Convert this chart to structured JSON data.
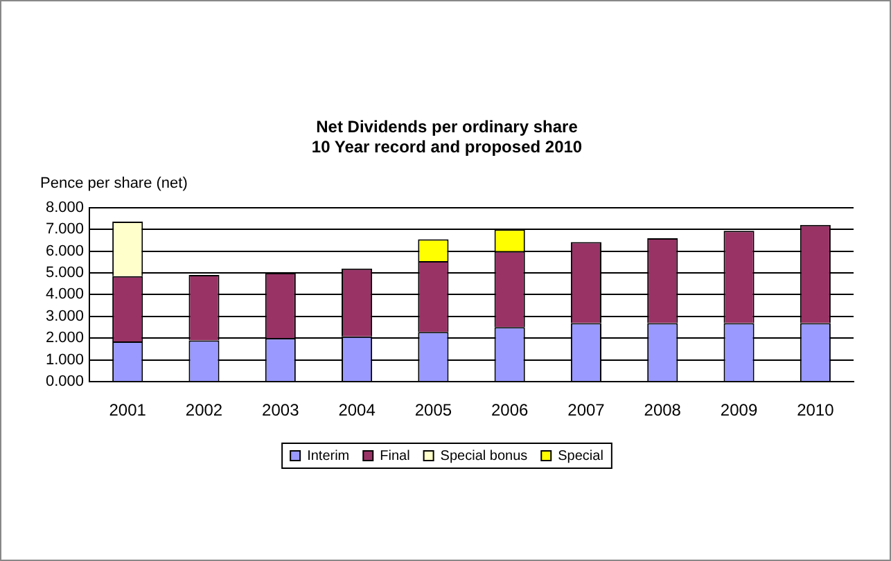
{
  "chart_data": {
    "type": "bar",
    "title": [
      "Net Dividends per ordinary share",
      "10 Year record and proposed 2010"
    ],
    "ylabel": "Pence per share (net)",
    "categories": [
      "2001",
      "2002",
      "2003",
      "2004",
      "2005",
      "2006",
      "2007",
      "2008",
      "2009",
      "2010"
    ],
    "series": [
      {
        "name": "Interim",
        "color": "#9999ff",
        "values": [
          1.85,
          1.9,
          2.0,
          2.08,
          2.29,
          2.51,
          2.69,
          2.69,
          2.69,
          2.69
        ]
      },
      {
        "name": "Final",
        "color": "#993366",
        "values": [
          3.0,
          3.0,
          3.0,
          3.12,
          3.25,
          3.48,
          3.72,
          3.9,
          4.24,
          4.51
        ]
      },
      {
        "name": "Special bonus",
        "color": "#ffffcc",
        "values": [
          2.5,
          null,
          null,
          null,
          null,
          null,
          null,
          null,
          null,
          null
        ]
      },
      {
        "name": "Special",
        "color": "#ffff00",
        "values": [
          null,
          null,
          null,
          null,
          1.0,
          1.0,
          null,
          null,
          null,
          null
        ]
      }
    ],
    "stacked": true,
    "ylim": [
      0,
      8
    ],
    "yticks": [
      {
        "value": 0,
        "label": "0.000"
      },
      {
        "value": 1,
        "label": "1.000"
      },
      {
        "value": 2,
        "label": "2.000"
      },
      {
        "value": 3,
        "label": "3.000"
      },
      {
        "value": 4,
        "label": "4.000"
      },
      {
        "value": 5,
        "label": "5.000"
      },
      {
        "value": 6,
        "label": "6.000"
      },
      {
        "value": 7,
        "label": "7.000"
      },
      {
        "value": 8,
        "label": "8.000"
      }
    ],
    "grid": "y",
    "legend": "bottom"
  }
}
